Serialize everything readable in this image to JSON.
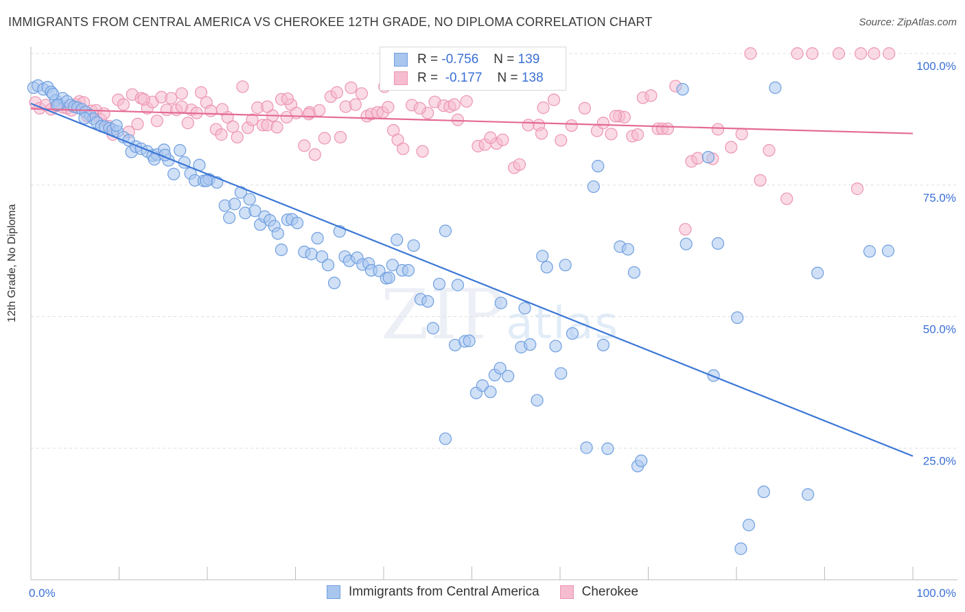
{
  "title": "IMMIGRANTS FROM CENTRAL AMERICA VS CHEROKEE 12TH GRADE, NO DIPLOMA CORRELATION CHART",
  "source": "Source: ZipAtlas.com",
  "watermark": {
    "zip": "ZIP",
    "atlas": "atlas"
  },
  "legend": {
    "r_label": "R =",
    "n_label": "N =",
    "series1": {
      "r": "-0.756",
      "n": "139"
    },
    "series2": {
      "r": "-0.177",
      "n": "138"
    }
  },
  "colors": {
    "blue_fill": "#a9c6ee",
    "blue_stroke": "#6e9ee0",
    "blue_line": "#3a76d6",
    "pink_fill": "#f6bcd0",
    "pink_stroke": "#ec94b2",
    "pink_line": "#e46a93",
    "grid": "#dddddd",
    "axis_text_blue": "#3a6fd6"
  },
  "chart_data": {
    "type": "scatter",
    "title": "IMMIGRANTS FROM CENTRAL AMERICA VS CHEROKEE 12TH GRADE, NO DIPLOMA CORRELATION CHART",
    "xlabel": "",
    "ylabel": "12th Grade, No Diploma",
    "xlim": [
      0,
      100
    ],
    "ylim": [
      0,
      100
    ],
    "x_tick_labels": [
      "0.0%",
      "100.0%"
    ],
    "y_ticks": [
      25,
      50,
      75,
      100
    ],
    "y_tick_labels": [
      "25.0%",
      "50.0%",
      "75.0%",
      "100.0%"
    ],
    "series": [
      {
        "name": "Immigrants from Central America",
        "color": "#a9c6ee",
        "trend": {
          "x": [
            0,
            100
          ],
          "y": [
            90.5,
            23.5
          ]
        },
        "points": [
          [
            0.3,
            93.5
          ],
          [
            0.8,
            93.9
          ],
          [
            1.4,
            93.2
          ],
          [
            1.9,
            93.6
          ],
          [
            2.3,
            92.7
          ],
          [
            2.8,
            91.1
          ],
          [
            3.2,
            90.3
          ],
          [
            3.6,
            91.5
          ],
          [
            4.1,
            90.9
          ],
          [
            4.5,
            90.2
          ],
          [
            4.9,
            89.9
          ],
          [
            5.3,
            89.7
          ],
          [
            5.8,
            89.4
          ],
          [
            6.2,
            88.9
          ],
          [
            6.7,
            88.3
          ],
          [
            7.1,
            87.6
          ],
          [
            7.5,
            86.9
          ],
          [
            8.0,
            86.2
          ],
          [
            8.4,
            86.1
          ],
          [
            8.9,
            85.8
          ],
          [
            9.3,
            85.5
          ],
          [
            9.8,
            85.2
          ],
          [
            10.5,
            84.1
          ],
          [
            11.1,
            83.5
          ],
          [
            11.4,
            81.3
          ],
          [
            11.9,
            82.3
          ],
          [
            12.5,
            81.9
          ],
          [
            13.2,
            81.4
          ],
          [
            13.8,
            80.6
          ],
          [
            14.3,
            80.8
          ],
          [
            15.1,
            81.7
          ],
          [
            15.6,
            79.7
          ],
          [
            16.2,
            77.1
          ],
          [
            16.9,
            81.6
          ],
          [
            17.4,
            79.3
          ],
          [
            18.1,
            77.2
          ],
          [
            18.6,
            75.9
          ],
          [
            19.1,
            78.8
          ],
          [
            19.6,
            75.8
          ],
          [
            20.2,
            76.1
          ],
          [
            21.1,
            75.5
          ],
          [
            22.0,
            71.1
          ],
          [
            22.5,
            68.8
          ],
          [
            23.1,
            71.4
          ],
          [
            23.8,
            73.6
          ],
          [
            24.3,
            69.7
          ],
          [
            24.8,
            72.3
          ],
          [
            25.4,
            70.1
          ],
          [
            26.0,
            67.5
          ],
          [
            26.5,
            69.0
          ],
          [
            27.1,
            68.3
          ],
          [
            27.6,
            67.2
          ],
          [
            28.0,
            65.8
          ],
          [
            28.4,
            62.7
          ],
          [
            29.1,
            68.4
          ],
          [
            29.6,
            68.5
          ],
          [
            30.2,
            67.8
          ],
          [
            31.0,
            62.3
          ],
          [
            32.5,
            64.9
          ],
          [
            31.8,
            61.9
          ],
          [
            33.0,
            61.4
          ],
          [
            33.7,
            59.8
          ],
          [
            34.4,
            56.4
          ],
          [
            35.0,
            66.2
          ],
          [
            35.6,
            61.4
          ],
          [
            36.1,
            60.6
          ],
          [
            37.0,
            61.2
          ],
          [
            37.6,
            59.9
          ],
          [
            38.3,
            60.1
          ],
          [
            38.6,
            58.8
          ],
          [
            39.5,
            58.7
          ],
          [
            40.3,
            57.3
          ],
          [
            41.0,
            59.8
          ],
          [
            41.5,
            64.6
          ],
          [
            42.1,
            58.8
          ],
          [
            42.8,
            58.8
          ],
          [
            43.4,
            63.5
          ],
          [
            44.2,
            53.3
          ],
          [
            45.0,
            52.9
          ],
          [
            45.6,
            47.8
          ],
          [
            46.3,
            56.2
          ],
          [
            47.0,
            66.3
          ],
          [
            48.1,
            44.6
          ],
          [
            49.2,
            45.3
          ],
          [
            49.7,
            45.4
          ],
          [
            50.5,
            35.5
          ],
          [
            51.2,
            36.9
          ],
          [
            52.1,
            35.7
          ],
          [
            52.6,
            38.9
          ],
          [
            53.2,
            40.2
          ],
          [
            54.1,
            38.7
          ],
          [
            55.6,
            44.2
          ],
          [
            56.0,
            51.6
          ],
          [
            56.6,
            44.7
          ],
          [
            57.4,
            34.1
          ],
          [
            58.0,
            61.5
          ],
          [
            58.5,
            59.4
          ],
          [
            59.5,
            44.4
          ],
          [
            60.1,
            39.2
          ],
          [
            60.6,
            59.8
          ],
          [
            61.4,
            46.8
          ],
          [
            63.0,
            25.1
          ],
          [
            63.8,
            74.7
          ],
          [
            64.3,
            78.6
          ],
          [
            64.9,
            44.6
          ],
          [
            65.4,
            24.9
          ],
          [
            66.8,
            63.3
          ],
          [
            67.7,
            62.8
          ],
          [
            68.4,
            58.4
          ],
          [
            68.8,
            21.6
          ],
          [
            69.2,
            22.6
          ],
          [
            73.9,
            93.2
          ],
          [
            74.3,
            63.8
          ],
          [
            76.8,
            80.3
          ],
          [
            77.4,
            38.8
          ],
          [
            77.9,
            63.9
          ],
          [
            80.1,
            49.8
          ],
          [
            80.5,
            5.9
          ],
          [
            81.4,
            10.4
          ],
          [
            83.1,
            16.7
          ],
          [
            84.4,
            93.5
          ],
          [
            88.1,
            16.2
          ],
          [
            89.2,
            58.3
          ],
          [
            95.1,
            62.4
          ],
          [
            97.2,
            62.5
          ],
          [
            47.0,
            26.8
          ],
          [
            15.2,
            80.7
          ],
          [
            19.9,
            75.8
          ],
          [
            40.6,
            57.4
          ],
          [
            9.7,
            86.3
          ],
          [
            6.1,
            87.7
          ],
          [
            3.0,
            90.2
          ],
          [
            48.4,
            56.0
          ],
          [
            2.5,
            92.3
          ],
          [
            14.0,
            79.9
          ],
          [
            53.3,
            52.6
          ]
        ]
      },
      {
        "name": "Cherokee",
        "color": "#f6bcd0",
        "trend": {
          "x": [
            0,
            100
          ],
          "y": [
            89.5,
            84.8
          ]
        },
        "points": [
          [
            0.5,
            90.7
          ],
          [
            1.0,
            89.6
          ],
          [
            1.7,
            90.2
          ],
          [
            2.3,
            89.4
          ],
          [
            2.9,
            90.1
          ],
          [
            3.6,
            89.8
          ],
          [
            4.1,
            89.6
          ],
          [
            4.6,
            89.2
          ],
          [
            5.1,
            90.3
          ],
          [
            5.5,
            90.9
          ],
          [
            6.0,
            90.7
          ],
          [
            6.4,
            88.1
          ],
          [
            6.9,
            89.1
          ],
          [
            7.4,
            89.2
          ],
          [
            7.9,
            87.5
          ],
          [
            8.3,
            88.6
          ],
          [
            8.8,
            86.2
          ],
          [
            9.3,
            84.6
          ],
          [
            9.9,
            91.2
          ],
          [
            10.5,
            90.3
          ],
          [
            11.1,
            85.1
          ],
          [
            11.5,
            92.2
          ],
          [
            12.1,
            86.6
          ],
          [
            12.5,
            91.5
          ],
          [
            13.2,
            89.6
          ],
          [
            13.8,
            90.8
          ],
          [
            14.3,
            87.2
          ],
          [
            14.8,
            91.7
          ],
          [
            15.4,
            89.3
          ],
          [
            15.9,
            91.5
          ],
          [
            16.5,
            89.3
          ],
          [
            17.1,
            92.4
          ],
          [
            17.8,
            86.8
          ],
          [
            18.2,
            89.3
          ],
          [
            18.8,
            88.7
          ],
          [
            19.3,
            92.6
          ],
          [
            19.9,
            90.7
          ],
          [
            20.4,
            89.1
          ],
          [
            21.0,
            85.6
          ],
          [
            21.6,
            84.6
          ],
          [
            22.3,
            87.9
          ],
          [
            22.9,
            86.1
          ],
          [
            23.4,
            84.1
          ],
          [
            24.0,
            93.7
          ],
          [
            24.6,
            85.9
          ],
          [
            25.1,
            87.4
          ],
          [
            25.7,
            89.7
          ],
          [
            26.3,
            86.4
          ],
          [
            26.8,
            86.4
          ],
          [
            27.4,
            88.2
          ],
          [
            27.9,
            86.0
          ],
          [
            28.4,
            91.3
          ],
          [
            29.0,
            87.9
          ],
          [
            29.5,
            90.3
          ],
          [
            30.1,
            88.7
          ],
          [
            31.0,
            82.5
          ],
          [
            31.6,
            88.8
          ],
          [
            32.2,
            80.8
          ],
          [
            32.7,
            89.2
          ],
          [
            33.3,
            83.9
          ],
          [
            34.0,
            91.8
          ],
          [
            35.1,
            84.1
          ],
          [
            35.7,
            89.9
          ],
          [
            36.3,
            93.5
          ],
          [
            36.8,
            90.3
          ],
          [
            37.5,
            92.4
          ],
          [
            38.1,
            88.1
          ],
          [
            38.6,
            88.5
          ],
          [
            39.3,
            88.8
          ],
          [
            39.9,
            88.8
          ],
          [
            40.5,
            89.8
          ],
          [
            41.1,
            85.4
          ],
          [
            41.6,
            83.6
          ],
          [
            42.2,
            81.9
          ],
          [
            43.2,
            90.2
          ],
          [
            44.4,
            81.4
          ],
          [
            45.0,
            88.7
          ],
          [
            45.8,
            90.8
          ],
          [
            46.8,
            90.1
          ],
          [
            47.5,
            89.9
          ],
          [
            48.4,
            87.4
          ],
          [
            49.4,
            90.9
          ],
          [
            50.7,
            82.4
          ],
          [
            51.5,
            82.7
          ],
          [
            52.8,
            82.9
          ],
          [
            53.5,
            83.6
          ],
          [
            54.8,
            78.3
          ],
          [
            55.4,
            78.9
          ],
          [
            56.4,
            86.4
          ],
          [
            57.6,
            86.4
          ],
          [
            57.9,
            84.8
          ],
          [
            59.3,
            91.2
          ],
          [
            60.1,
            83.5
          ],
          [
            61.3,
            86.3
          ],
          [
            62.8,
            89.6
          ],
          [
            64.2,
            85.3
          ],
          [
            64.9,
            86.8
          ],
          [
            65.8,
            84.7
          ],
          [
            66.7,
            88.1
          ],
          [
            67.3,
            87.9
          ],
          [
            68.2,
            84.3
          ],
          [
            68.8,
            84.6
          ],
          [
            69.4,
            91.6
          ],
          [
            70.3,
            92.0
          ],
          [
            71.1,
            85.7
          ],
          [
            71.6,
            85.7
          ],
          [
            72.2,
            85.7
          ],
          [
            73.1,
            93.8
          ],
          [
            74.9,
            79.5
          ],
          [
            75.6,
            80.1
          ],
          [
            77.3,
            80.0
          ],
          [
            77.9,
            85.6
          ],
          [
            79.4,
            82.2
          ],
          [
            80.6,
            84.7
          ],
          [
            81.6,
            100.0
          ],
          [
            82.7,
            75.9
          ],
          [
            83.7,
            81.6
          ],
          [
            85.7,
            72.4
          ],
          [
            86.9,
            100.0
          ],
          [
            88.6,
            100.0
          ],
          [
            91.6,
            100.0
          ],
          [
            93.7,
            74.3
          ],
          [
            94.1,
            100.0
          ],
          [
            95.6,
            100.0
          ],
          [
            97.3,
            100.0
          ],
          [
            12.8,
            91.3
          ],
          [
            17.1,
            89.9
          ],
          [
            29.1,
            91.4
          ],
          [
            21.7,
            89.4
          ],
          [
            31.5,
            88.5
          ],
          [
            40.1,
            93.7
          ],
          [
            48.0,
            90.3
          ],
          [
            58.1,
            89.7
          ],
          [
            66.3,
            88.1
          ],
          [
            26.8,
            89.9
          ],
          [
            34.7,
            92.6
          ],
          [
            44.1,
            89.6
          ],
          [
            52.1,
            84.0
          ],
          [
            74.2,
            66.6
          ]
        ]
      }
    ]
  },
  "axis": {
    "ylabel": "12th Grade, No Diploma",
    "x_left": "0.0%",
    "x_right": "100.0%"
  }
}
